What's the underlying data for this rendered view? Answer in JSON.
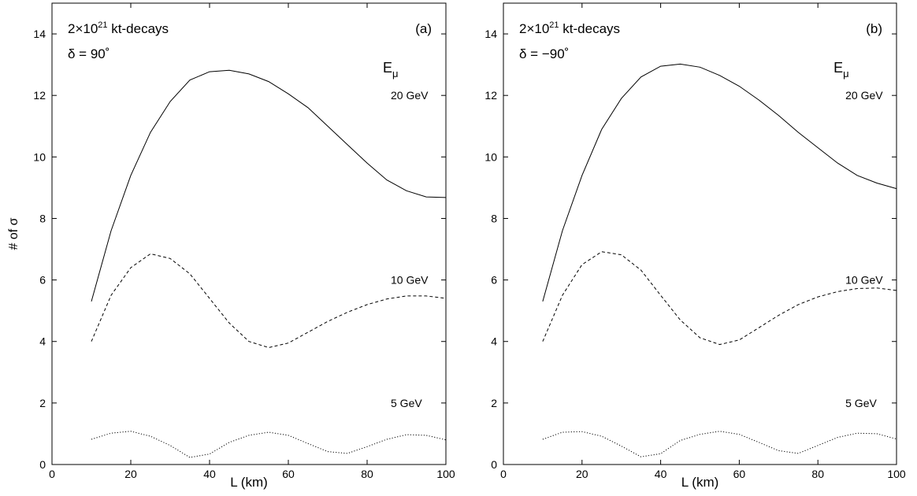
{
  "chart_data": [
    {
      "type": "line",
      "panel_label": "(a)",
      "exposure_label": {
        "base": "2×10",
        "exp": "21",
        "rest": " kt-decays"
      },
      "delta_label": "δ = 90˚",
      "energy_title": {
        "base": "E",
        "sub": "μ"
      },
      "xlabel": "L  (km)",
      "ylabel": "# of σ",
      "xlim": [
        0,
        100
      ],
      "ylim": [
        0,
        15
      ],
      "xticks": [
        0,
        20,
        40,
        60,
        80,
        100
      ],
      "yticks": [
        0,
        2,
        4,
        6,
        8,
        10,
        12,
        14
      ],
      "grid": false,
      "series": [
        {
          "name": "20 GeV",
          "dash": "solid",
          "x": [
            10,
            15,
            20,
            25,
            30,
            35,
            40,
            45,
            50,
            55,
            60,
            65,
            70,
            75,
            80,
            85,
            90,
            95,
            100
          ],
          "y": [
            5.3,
            7.6,
            9.4,
            10.8,
            11.8,
            12.5,
            12.77,
            12.82,
            12.7,
            12.45,
            12.05,
            11.6,
            11.0,
            10.4,
            9.8,
            9.25,
            8.9,
            8.7,
            8.68
          ]
        },
        {
          "name": "10 GeV",
          "dash": "dashed",
          "x": [
            10,
            15,
            20,
            25,
            30,
            35,
            40,
            45,
            50,
            55,
            60,
            65,
            70,
            75,
            80,
            85,
            90,
            95,
            100
          ],
          "y": [
            4.0,
            5.5,
            6.4,
            6.85,
            6.7,
            6.2,
            5.4,
            4.6,
            4.0,
            3.8,
            3.95,
            4.3,
            4.65,
            4.95,
            5.2,
            5.38,
            5.48,
            5.48,
            5.4
          ]
        },
        {
          "name": "5 GeV",
          "dash": "dotted",
          "x": [
            10,
            15,
            20,
            25,
            30,
            35,
            40,
            45,
            50,
            55,
            60,
            65,
            70,
            75,
            80,
            85,
            90,
            95,
            100
          ],
          "y": [
            0.82,
            1.02,
            1.08,
            0.92,
            0.62,
            0.23,
            0.34,
            0.72,
            0.95,
            1.05,
            0.95,
            0.68,
            0.42,
            0.36,
            0.58,
            0.82,
            0.97,
            0.95,
            0.8
          ]
        }
      ],
      "curve_labels": [
        {
          "text": "20 GeV",
          "x": 86,
          "y": 12.0
        },
        {
          "text": "10 GeV",
          "x": 86,
          "y": 6.0
        },
        {
          "text": "5 GeV",
          "x": 86,
          "y": 2.0
        }
      ]
    },
    {
      "type": "line",
      "panel_label": "(b)",
      "exposure_label": {
        "base": "2×10",
        "exp": "21",
        "rest": " kt-decays"
      },
      "delta_label": "δ = −90˚",
      "energy_title": {
        "base": "E",
        "sub": "μ"
      },
      "xlabel": "L  (km)",
      "ylabel": "",
      "xlim": [
        0,
        100
      ],
      "ylim": [
        0,
        15
      ],
      "xticks": [
        0,
        20,
        40,
        60,
        80,
        100
      ],
      "yticks": [
        0,
        2,
        4,
        6,
        8,
        10,
        12,
        14
      ],
      "grid": false,
      "series": [
        {
          "name": "20 GeV",
          "dash": "solid",
          "x": [
            10,
            15,
            20,
            25,
            30,
            35,
            40,
            45,
            50,
            55,
            60,
            65,
            70,
            75,
            80,
            85,
            90,
            95,
            100
          ],
          "y": [
            5.3,
            7.6,
            9.4,
            10.9,
            11.9,
            12.6,
            12.95,
            13.02,
            12.92,
            12.65,
            12.3,
            11.85,
            11.35,
            10.8,
            10.3,
            9.8,
            9.4,
            9.15,
            8.97
          ]
        },
        {
          "name": "10 GeV",
          "dash": "dashed",
          "x": [
            10,
            15,
            20,
            25,
            30,
            35,
            40,
            45,
            50,
            55,
            60,
            65,
            70,
            75,
            80,
            85,
            90,
            95,
            100
          ],
          "y": [
            4.0,
            5.5,
            6.5,
            6.92,
            6.82,
            6.32,
            5.5,
            4.7,
            4.12,
            3.9,
            4.05,
            4.45,
            4.85,
            5.2,
            5.45,
            5.62,
            5.72,
            5.74,
            5.66
          ]
        },
        {
          "name": "5 GeV",
          "dash": "dotted",
          "x": [
            10,
            15,
            20,
            25,
            30,
            35,
            40,
            45,
            50,
            55,
            60,
            65,
            70,
            75,
            80,
            85,
            90,
            95,
            100
          ],
          "y": [
            0.82,
            1.05,
            1.07,
            0.92,
            0.6,
            0.25,
            0.35,
            0.78,
            0.98,
            1.08,
            0.98,
            0.72,
            0.45,
            0.36,
            0.62,
            0.88,
            1.02,
            1.0,
            0.83
          ]
        }
      ],
      "curve_labels": [
        {
          "text": "20 GeV",
          "x": 87,
          "y": 12.0
        },
        {
          "text": "10 GeV",
          "x": 87,
          "y": 6.0
        },
        {
          "text": "5 GeV",
          "x": 87,
          "y": 2.0
        }
      ]
    }
  ]
}
